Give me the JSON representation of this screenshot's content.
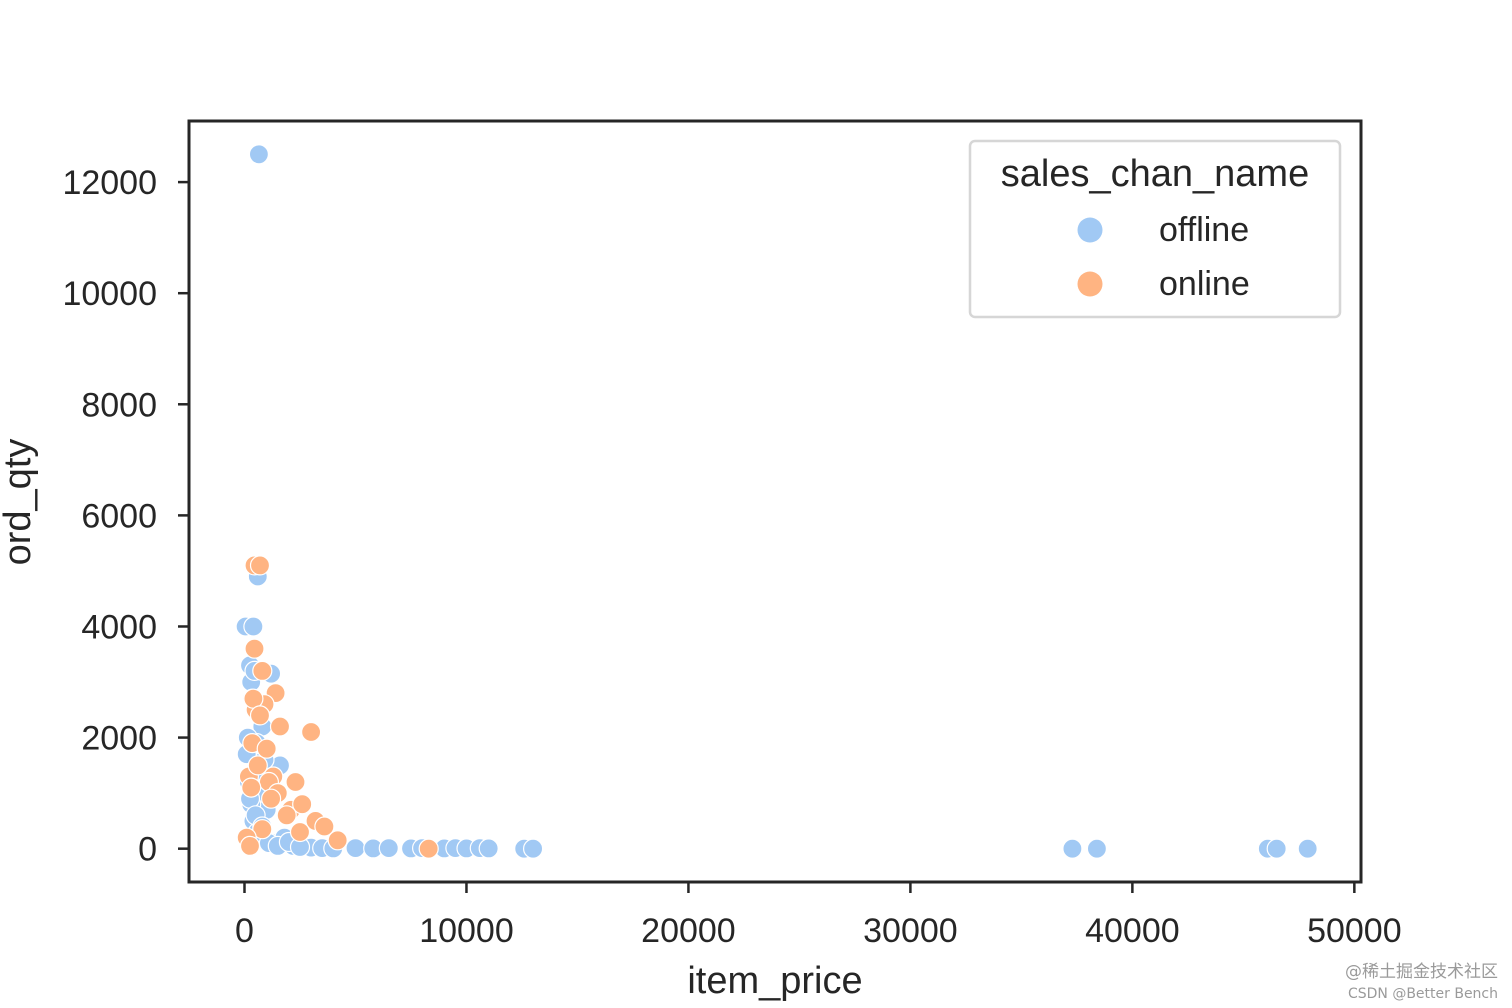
{
  "chart_data": {
    "type": "scatter",
    "xlabel": "item_price",
    "ylabel": "ord_qty",
    "xlim": [
      -2500,
      50300
    ],
    "ylim": [
      -600,
      13100
    ],
    "x_ticks": [
      0,
      10000,
      20000,
      30000,
      40000,
      50000
    ],
    "x_tick_labels": [
      "0",
      "10000",
      "20000",
      "30000",
      "40000",
      "50000"
    ],
    "y_ticks": [
      0,
      2000,
      4000,
      6000,
      8000,
      10000,
      12000
    ],
    "y_tick_labels": [
      "0",
      "2000",
      "4000",
      "6000",
      "8000",
      "10000",
      "12000"
    ],
    "grid": false,
    "legend": {
      "title": "sales_chan_name",
      "placement": "top-right",
      "entries": [
        {
          "label": "offline",
          "color": "#a1c9f4"
        },
        {
          "label": "online",
          "color": "#ffb482"
        }
      ]
    },
    "series": [
      {
        "name": "offline",
        "color": "#a1c9f4",
        "x": [
          650,
          50,
          400,
          600,
          250,
          300,
          450,
          1200,
          1600,
          350,
          800,
          550,
          900,
          150,
          100,
          200,
          500,
          700,
          1000,
          300,
          400,
          600,
          900,
          1300,
          1800,
          2200,
          2600,
          3000,
          3500,
          4000,
          5000,
          5800,
          6500,
          7500,
          8000,
          9000,
          9500,
          10000,
          10600,
          11000,
          12600,
          13000,
          37300,
          38400,
          46100,
          46500,
          47900,
          250,
          500,
          800,
          1100,
          1500,
          2000,
          2500
        ],
        "y": [
          12500,
          4000,
          4000,
          4900,
          3300,
          3000,
          3200,
          3150,
          1500,
          2700,
          2200,
          1900,
          1600,
          2000,
          1700,
          1200,
          1400,
          1000,
          700,
          800,
          500,
          300,
          150,
          100,
          200,
          50,
          30,
          20,
          10,
          5,
          10,
          5,
          10,
          5,
          10,
          5,
          10,
          5,
          10,
          5,
          0,
          0,
          0,
          0,
          0,
          0,
          0,
          900,
          600,
          400,
          100,
          50,
          120,
          30
        ]
      },
      {
        "name": "online",
        "color": "#ffb482",
        "x": [
          450,
          700,
          450,
          800,
          1400,
          3000,
          500,
          900,
          1300,
          1100,
          1600,
          2300,
          2100,
          2600,
          3200,
          3600,
          4200,
          8300,
          200,
          350,
          600,
          1000,
          1500,
          400,
          700,
          1200,
          1900,
          2500,
          300,
          800,
          100,
          250
        ],
        "y": [
          5100,
          5100,
          3600,
          3200,
          2800,
          2100,
          2500,
          2600,
          1300,
          1200,
          2200,
          1200,
          700,
          800,
          500,
          400,
          150,
          0,
          1300,
          1900,
          1500,
          1800,
          1000,
          2700,
          2400,
          900,
          600,
          300,
          1100,
          350,
          200,
          50
        ]
      }
    ]
  }
}
